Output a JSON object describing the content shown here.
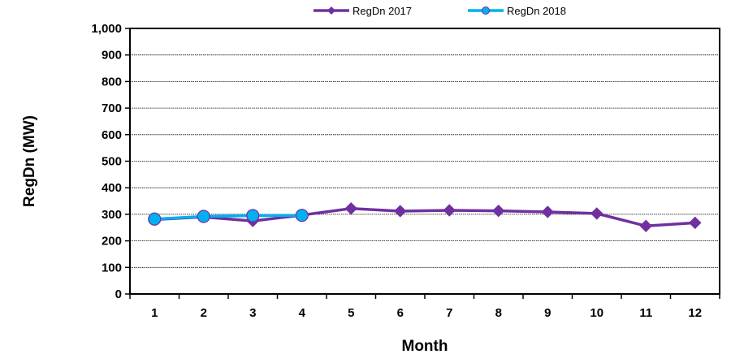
{
  "chart_data": {
    "type": "line",
    "xlabel": "Month",
    "ylabel": "RegDn (MW)",
    "ylim": [
      0,
      1000
    ],
    "y_ticks": [
      0,
      100,
      200,
      300,
      400,
      500,
      600,
      700,
      800,
      900,
      1000
    ],
    "y_tick_labels": [
      "0",
      "100",
      "200",
      "300",
      "400",
      "500",
      "600",
      "700",
      "800",
      "900",
      "1,000"
    ],
    "x": [
      1,
      2,
      3,
      4,
      5,
      6,
      7,
      8,
      9,
      10,
      11,
      12
    ],
    "x_tick_labels": [
      "1",
      "2",
      "3",
      "4",
      "5",
      "6",
      "7",
      "8",
      "9",
      "10",
      "11",
      "12"
    ],
    "grid": true,
    "legend_position": "top",
    "series": [
      {
        "name": "RegDn 2017",
        "color": "#7030A0",
        "marker": "diamond",
        "x": [
          1,
          2,
          3,
          4,
          5,
          6,
          7,
          8,
          9,
          10,
          11,
          12
        ],
        "values": [
          280,
          290,
          275,
          297,
          322,
          312,
          315,
          313,
          309,
          303,
          256,
          268
        ]
      },
      {
        "name": "RegDn 2018",
        "color": "#00B0F0",
        "marker": "circle",
        "x": [
          1,
          2,
          3,
          4
        ],
        "values": [
          282,
          292,
          295,
          296
        ]
      }
    ]
  }
}
